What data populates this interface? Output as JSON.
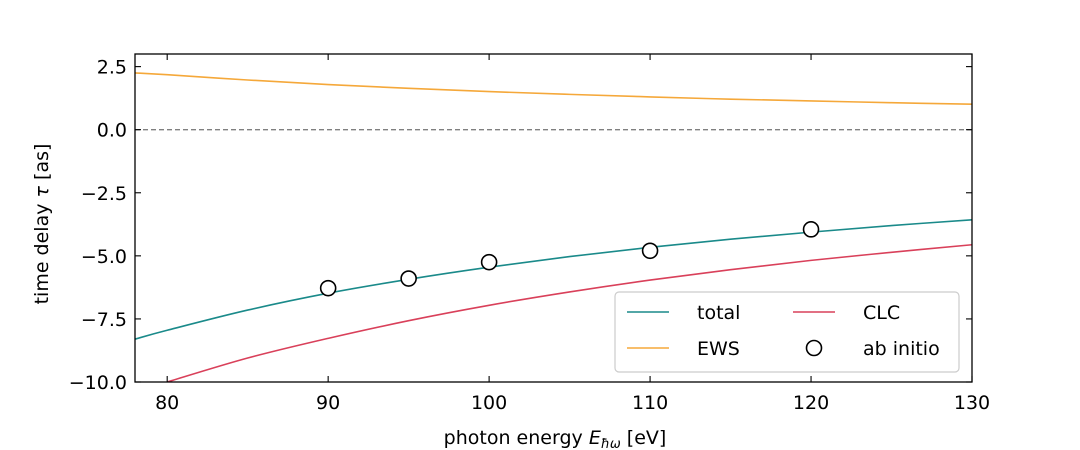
{
  "chart_data": {
    "type": "line",
    "title": "",
    "xlabel": "photon energy",
    "xlabel_symbol": "E",
    "xlabel_subscript": "ħω",
    "xlabel_unit": "[eV]",
    "ylabel": "time delay",
    "ylabel_symbol": "τ",
    "ylabel_unit": "[as]",
    "xlim": [
      78,
      130
    ],
    "ylim": [
      -10.0,
      3.0
    ],
    "xticks": [
      80,
      90,
      100,
      110,
      120,
      130
    ],
    "xtick_labels": [
      "80",
      "90",
      "100",
      "110",
      "120",
      "130"
    ],
    "yticks": [
      -10.0,
      -7.5,
      -5.0,
      -2.5,
      0.0,
      2.5
    ],
    "ytick_labels": [
      "−10.0",
      "−7.5",
      "−5.0",
      "−2.5",
      "0.0",
      "2.5"
    ],
    "grid": false,
    "reference_line": {
      "y": 0.0,
      "style": "dashed",
      "color": "#808080"
    },
    "legend_position": "lower-right",
    "series": [
      {
        "name": "total",
        "kind": "line",
        "color": "#1a8a8a",
        "x": [
          78,
          80,
          85,
          90,
          95,
          100,
          105,
          110,
          115,
          120,
          125,
          130
        ],
        "y": [
          -8.3,
          -7.95,
          -7.15,
          -6.48,
          -5.93,
          -5.45,
          -5.03,
          -4.66,
          -4.34,
          -4.06,
          -3.8,
          -3.57
        ]
      },
      {
        "name": "EWS",
        "kind": "line",
        "color": "#f5a83a",
        "x": [
          78,
          80,
          85,
          90,
          95,
          100,
          105,
          110,
          115,
          120,
          125,
          130
        ],
        "y": [
          2.25,
          2.18,
          1.97,
          1.79,
          1.64,
          1.51,
          1.4,
          1.3,
          1.21,
          1.14,
          1.07,
          1.01
        ]
      },
      {
        "name": "CLC",
        "kind": "line",
        "color": "#d9405a",
        "x": [
          80,
          85,
          90,
          95,
          100,
          105,
          110,
          115,
          120,
          125,
          130
        ],
        "y": [
          -10.0,
          -9.05,
          -8.27,
          -7.57,
          -6.96,
          -6.43,
          -5.96,
          -5.55,
          -5.18,
          -4.86,
          -4.56
        ]
      },
      {
        "name": "ab initio",
        "kind": "scatter",
        "marker": "open-circle",
        "color": "#000000",
        "x": [
          90,
          95,
          100,
          110,
          120
        ],
        "y": [
          -6.28,
          -5.9,
          -5.25,
          -4.8,
          -3.95
        ]
      }
    ]
  }
}
